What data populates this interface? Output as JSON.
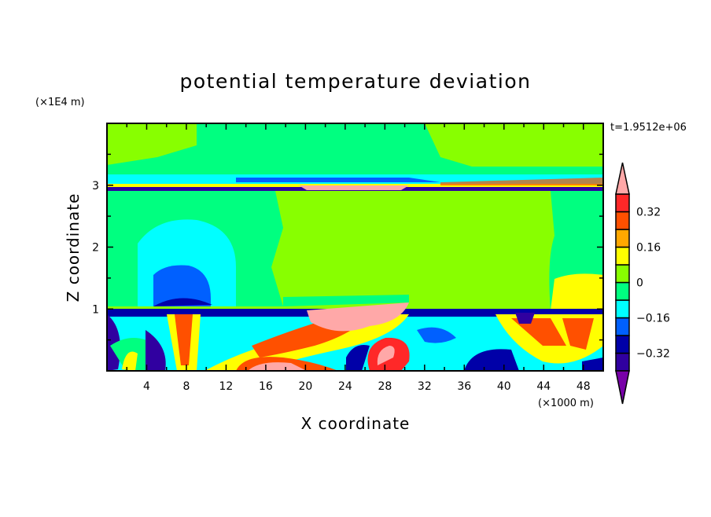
{
  "chart_data": {
    "type": "heatmap",
    "subtype": "filled-contour",
    "title": "potential temperature deviation",
    "xlabel": "X coordinate",
    "ylabel": "Z coordinate",
    "x_unit": "(×1000 m)",
    "y_unit": "(×1E4 m)",
    "time_label": "t=1.9512e+06",
    "xlim": [
      0,
      50
    ],
    "ylim": [
      0,
      4
    ],
    "x_ticks": [
      4,
      8,
      12,
      16,
      20,
      24,
      28,
      32,
      36,
      40,
      44,
      48
    ],
    "y_ticks": [
      1,
      2,
      3
    ],
    "colorbar": {
      "levels": [
        -0.4,
        -0.32,
        -0.24,
        -0.16,
        -0.08,
        0,
        0.08,
        0.16,
        0.24,
        0.32,
        0.4
      ],
      "labels": [
        "0.32",
        "0.16",
        "0",
        "-0.16",
        "-0.32"
      ],
      "label_values": [
        0.32,
        0.16,
        0,
        -0.16,
        -0.32
      ],
      "colors_low_to_high": [
        "#3000a0",
        "#0000a8",
        "#0060ff",
        "#00ffff",
        "#00ff80",
        "#88ff00",
        "#ffff00",
        "#ffa800",
        "#ff5000",
        "#ff2828"
      ],
      "over_color": "#ffa8a8",
      "under_color": "#7800a8",
      "extend": "both"
    },
    "features": [
      "stable layer near z=3 with strong oscillation band",
      "turbulent boundary layer below z=1 with warm plumes near x=8, x=16-30 and x=42-48",
      "cool blob above x=6-10 between z=1 and z=2.5"
    ]
  }
}
